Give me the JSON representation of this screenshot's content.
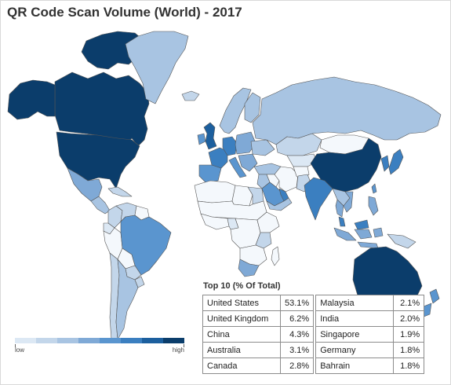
{
  "title": "QR Code Scan Volume (World) - 2017",
  "colors": {
    "scale": [
      "#f4f8fc",
      "#dce8f4",
      "#c3d6ea",
      "#a8c4e2",
      "#7fa9d6",
      "#5a95cf",
      "#3b7fc0",
      "#1c5f9e",
      "#0b3d6b"
    ],
    "no_data": "#ffffff",
    "border": "#555555"
  },
  "legend": {
    "low_label": "low",
    "high_label": "high"
  },
  "top10": {
    "title": "Top 10 (% Of Total)",
    "rows": [
      {
        "left_country": "United States",
        "left_value": "53.1%",
        "right_country": "Malaysia",
        "right_value": "2.1%"
      },
      {
        "left_country": "United Kingdom",
        "left_value": "6.2%",
        "right_country": "India",
        "right_value": "2.0%"
      },
      {
        "left_country": "China",
        "left_value": "4.3%",
        "right_country": "Singapore",
        "right_value": "1.9%"
      },
      {
        "left_country": "Australia",
        "left_value": "3.1%",
        "right_country": "Germany",
        "right_value": "1.8%"
      },
      {
        "left_country": "Canada",
        "left_value": "2.8%",
        "right_country": "Bahrain",
        "right_value": "1.8%"
      }
    ]
  },
  "regions": [
    {
      "name": "canada",
      "level": 8
    },
    {
      "name": "alaska",
      "level": 8
    },
    {
      "name": "arctic-islands",
      "level": 8
    },
    {
      "name": "united-states",
      "level": 8
    },
    {
      "name": "greenland",
      "level": 3
    },
    {
      "name": "mexico",
      "level": 4
    },
    {
      "name": "central-america",
      "level": 3
    },
    {
      "name": "caribbean",
      "level": 2
    },
    {
      "name": "colombia",
      "level": 2
    },
    {
      "name": "venezuela",
      "level": 2
    },
    {
      "name": "ecuador",
      "level": 1
    },
    {
      "name": "peru",
      "level": 0
    },
    {
      "name": "brazil",
      "level": 5
    },
    {
      "name": "bolivia",
      "level": 0
    },
    {
      "name": "paraguay",
      "level": 2
    },
    {
      "name": "argentina",
      "level": 3
    },
    {
      "name": "chile",
      "level": 2
    },
    {
      "name": "uruguay",
      "level": 2
    },
    {
      "name": "guianas",
      "level": 0
    },
    {
      "name": "russia",
      "level": 3
    },
    {
      "name": "iceland",
      "level": 2
    },
    {
      "name": "scandinavia",
      "level": 3
    },
    {
      "name": "finland",
      "level": 3
    },
    {
      "name": "united-kingdom",
      "level": 7
    },
    {
      "name": "ireland",
      "level": 5
    },
    {
      "name": "france",
      "level": 6
    },
    {
      "name": "iberia",
      "level": 5
    },
    {
      "name": "germany",
      "level": 6
    },
    {
      "name": "italy",
      "level": 5
    },
    {
      "name": "eastern-europe",
      "level": 4
    },
    {
      "name": "ukraine",
      "level": 3
    },
    {
      "name": "balkans",
      "level": 4
    },
    {
      "name": "turkey",
      "level": 3
    },
    {
      "name": "kazakhstan",
      "level": 2
    },
    {
      "name": "central-asia",
      "level": 1
    },
    {
      "name": "mongolia",
      "level": 0
    },
    {
      "name": "china",
      "level": 8
    },
    {
      "name": "korea",
      "level": 6
    },
    {
      "name": "japan",
      "level": 6
    },
    {
      "name": "taiwan",
      "level": 5
    },
    {
      "name": "india",
      "level": 6
    },
    {
      "name": "pakistan",
      "level": 2
    },
    {
      "name": "afghanistan",
      "level": 0
    },
    {
      "name": "iran",
      "level": 0
    },
    {
      "name": "iraq",
      "level": 0
    },
    {
      "name": "levant",
      "level": 3
    },
    {
      "name": "saudi-arabia",
      "level": 5
    },
    {
      "name": "gulf-states",
      "level": 6
    },
    {
      "name": "yemen-oman",
      "level": 3
    },
    {
      "name": "southeast-asia",
      "level": 3
    },
    {
      "name": "thailand",
      "level": 4
    },
    {
      "name": "vietnam",
      "level": 4
    },
    {
      "name": "malaysia",
      "level": 6
    },
    {
      "name": "indonesia",
      "level": 4
    },
    {
      "name": "philippines",
      "level": 4
    },
    {
      "name": "new-guinea",
      "level": 2
    },
    {
      "name": "australia",
      "level": 8
    },
    {
      "name": "new-zealand",
      "level": 5
    },
    {
      "name": "north-africa-west",
      "level": 0
    },
    {
      "name": "libya",
      "level": 0
    },
    {
      "name": "egypt",
      "level": 2
    },
    {
      "name": "sahel",
      "level": 0
    },
    {
      "name": "west-africa",
      "level": 0
    },
    {
      "name": "nigeria",
      "level": 1
    },
    {
      "name": "central-africa",
      "level": 0
    },
    {
      "name": "east-africa",
      "level": 0
    },
    {
      "name": "kenya",
      "level": 2
    },
    {
      "name": "southern-africa",
      "level": 0
    },
    {
      "name": "south-africa",
      "level": 4
    },
    {
      "name": "madagascar",
      "level": 0
    }
  ]
}
